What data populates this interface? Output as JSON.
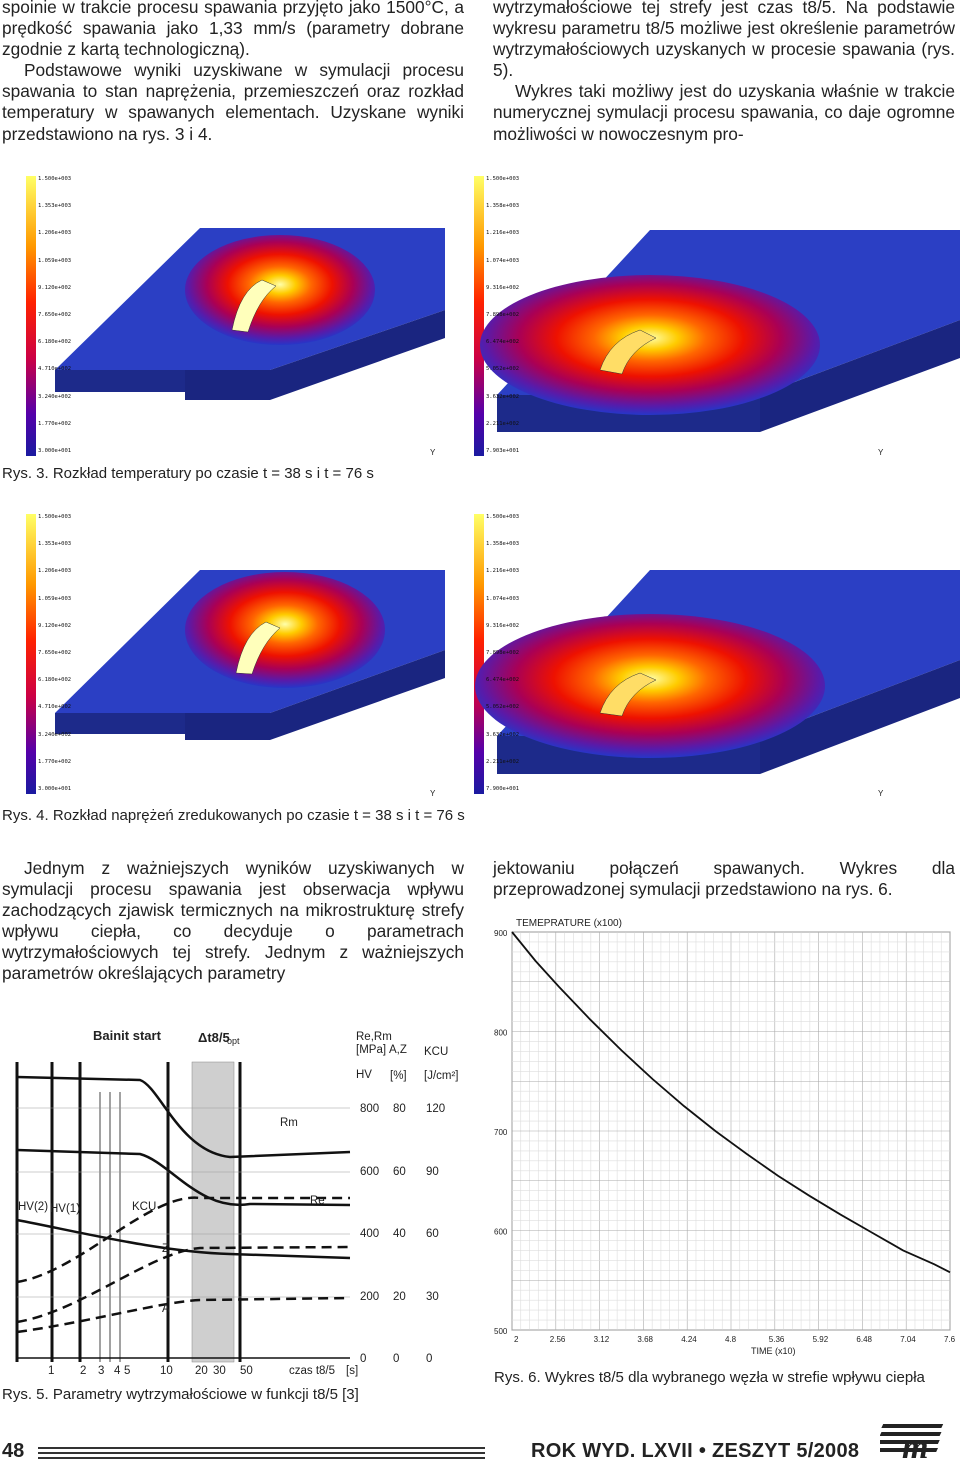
{
  "text": {
    "left_top": [
      "spoinie w trakcie procesu spawania przyjęto jako 1500°C, a prędkość spawania jako 1,33 mm/s (parametry dobrane zgodnie z kartą technologiczną).",
      "Podstawowe wyniki uzyskiwane w symulacji procesu spawania to stan naprężenia, przemieszczeń oraz rozkład temperatury w spawanych elementach. Uzyskane wyniki przedstawiono na rys. 3 i 4."
    ],
    "right_top": [
      "wytrzymałościowe tej strefy jest czas t8/5. Na podstawie wykresu parametru t8/5 możliwe jest określenie parametrów wytrzymałościowych uzyskanych w procesie spawania (rys. 5).",
      "Wykres taki możliwy jest do uzyskania właśnie w trakcie numerycznej symulacji procesu spawania, co daje ogromne możliwości w nowoczesnym pro-"
    ],
    "left_bottom": "Jednym z ważniejszych wyników uzyskiwanych w symulacji procesu spawania jest obserwacja wpływu zachodzących zjawisk termicznych na mikrostrukturę strefy wpływu ciepła, co decyduje o parametrach wytrzymałościowych tej strefy. Jednym z ważniejszych parametrów określających parametry",
    "right_bottom": "jektowaniu połączeń spawanych. Wykres dla przeprowadzonej symulacji przedstawiono na rys. 6."
  },
  "captions": {
    "rys3": "Rys. 3. Rozkład temperatury po czasie t = 38 s i t = 76 s",
    "rys4": "Rys. 4. Rozkład naprężeń zredukowanych po czasie t = 38 s i t = 76 s",
    "rys5": "Rys. 5. Parametry wytrzymałościowe w funkcji t8/5 [3]",
    "rys6": "Rys. 6. Wykres t8/5 dla wybranego węzła w strefie wpływu ciepła"
  },
  "legends": {
    "fig3_left": [
      "1.500e+003",
      "1.353e+003",
      "1.206e+003",
      "1.059e+003",
      "9.120e+002",
      "7.650e+002",
      "6.180e+002",
      "4.710e+002",
      "3.240e+002",
      "1.770e+002",
      "3.000e+001"
    ],
    "fig3_right": [
      "1.500e+003",
      "1.358e+003",
      "1.216e+003",
      "1.074e+003",
      "9.316e+002",
      "7.898e+002",
      "6.474e+002",
      "5.052e+002",
      "3.632e+002",
      "2.211e+002",
      "7.903e+001"
    ],
    "fig4_left": [
      "1.500e+003",
      "1.353e+003",
      "1.206e+003",
      "1.059e+003",
      "9.120e+002",
      "7.650e+002",
      "6.180e+002",
      "4.710e+002",
      "3.240e+002",
      "1.770e+002",
      "3.000e+001"
    ],
    "fig4_right": [
      "1.500e+003",
      "1.358e+003",
      "1.216e+003",
      "1.074e+003",
      "9.316e+002",
      "7.898e+002",
      "6.474e+002",
      "5.052e+002",
      "3.632e+002",
      "2.211e+002",
      "7.900e+001"
    ],
    "axis_mark": "Y"
  },
  "fig5": {
    "bainit": "Bainit start",
    "dt": "Δt8/5",
    "dt_sub": "opt",
    "rerm": "Re,Rm",
    "mpa": "[MPa]",
    "az": "A,Z",
    "pct": "[%]",
    "hv": "HV",
    "kcu": "KCU",
    "jcm": "[J/cm²]",
    "rm": "Rm",
    "re": "Re",
    "kcu_lbl": "KCU",
    "z": "Z",
    "a": "A",
    "hv2": "HV(2)",
    "hv1": "HV(1)",
    "col_hv": [
      "800",
      "600",
      "400",
      "200",
      "0"
    ],
    "col_az": [
      "80",
      "60",
      "40",
      "20",
      "0"
    ],
    "col_kcu": [
      "120",
      "90",
      "60",
      "30",
      "0"
    ],
    "xticks": [
      "1",
      "2",
      "3",
      "4",
      "5",
      "10",
      "20",
      "30",
      "50"
    ],
    "xlabel": "czas t8/5",
    "xunit": "[s]"
  },
  "chart_data": {
    "type": "line",
    "title": "TEMEPRATURE (x100)",
    "xlabel": "TIME (x10)",
    "ylabel": "TEMEPRATURE (x100)",
    "x_ticks": [
      "2",
      "2.56",
      "3.12",
      "3.68",
      "4.24",
      "4.8",
      "5.36",
      "5.92",
      "6.48",
      "7.04",
      "7.6"
    ],
    "y_ticks": [
      "900",
      "800",
      "700",
      "600",
      "500"
    ],
    "xlim": [
      2,
      7.6
    ],
    "ylim": [
      500,
      900
    ],
    "grid": true,
    "series": [
      {
        "x": [
          2.0,
          2.3,
          2.6,
          3.0,
          3.4,
          3.8,
          4.2,
          4.6,
          5.0,
          5.4,
          5.8,
          6.2,
          6.6,
          7.0,
          7.4,
          7.6
        ],
        "y": [
          900,
          871,
          845,
          812,
          781,
          752,
          725,
          700,
          677,
          655,
          635,
          616,
          598,
          580,
          566,
          558
        ]
      }
    ]
  },
  "footer": {
    "page": "48",
    "journal": "ROK WYD. LXVII • ZESZYT 5/2008"
  }
}
